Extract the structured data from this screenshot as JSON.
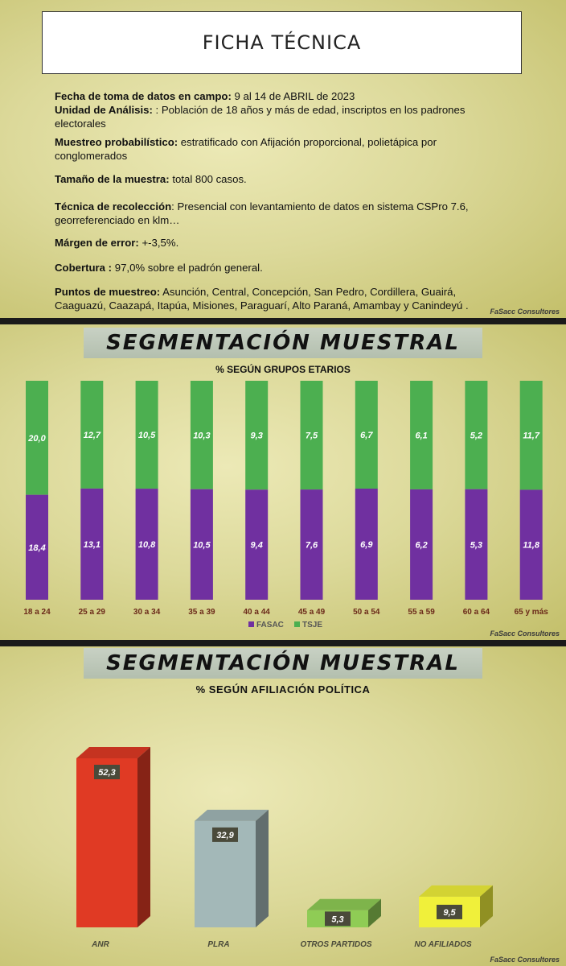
{
  "ficha": {
    "title": "FICHA TÉCNICA",
    "fields": [
      {
        "label": "Fecha de toma de datos en campo:",
        "value": " 9 al 14 de ABRIL de 2023"
      },
      {
        "label": "Unidad de Análisis: ",
        "value": ": Población de 18 años y más de edad, inscriptos en los padrones electorales"
      },
      {
        "label": " Muestreo probabilístico:",
        "value": " estratificado con Afijación proporcional, polietápica por conglomerados"
      },
      {
        "label": "Tamaño de la muestra:",
        "value": " total 800 casos."
      },
      {
        "label": "Técnica de recolección",
        "value": ": Presencial con levantamiento de datos en sistema CSPro 7.6, georreferenciado en klm…"
      },
      {
        "label": "Márgen de error:",
        "value": " +-3,5%."
      },
      {
        "label": "Cobertura : ",
        "value": "97,0% sobre el padrón general."
      },
      {
        "label": "Puntos de muestreo:",
        "value": " Asunción, Central, Concepción, San Pedro, Cordillera, Guairá, Caaguazú, Caazapá, Itapúa, Misiones, Paraguarí, Alto Paraná, Amambay y Canindeyú ."
      }
    ],
    "brand": "FaSacc Consultores"
  },
  "chart_data": [
    {
      "type": "bar",
      "stacked": true,
      "banner": "SEGMENTACIÓN MUESTRAL",
      "title": "% SEGÚN GRUPOS ETARIOS",
      "categories": [
        "18 a 24",
        "25 a 29",
        "30 a 34",
        "35 a 39",
        "40 a 44",
        "45 a 49",
        "50 a 54",
        "55 a 59",
        "60 a 64",
        "65 y más"
      ],
      "series": [
        {
          "name": "FASAC",
          "color": "#7030a0",
          "values": [
            18.4,
            13.1,
            10.8,
            10.5,
            9.4,
            7.6,
            6.9,
            6.2,
            5.3,
            11.8
          ],
          "labels": [
            "18,4",
            "13,1",
            "10,8",
            "10,5",
            "9,4",
            "7,6",
            "6,9",
            "6,2",
            "5,3",
            "11,8"
          ]
        },
        {
          "name": "TSJE",
          "color": "#4caf50",
          "values": [
            20.0,
            12.7,
            10.5,
            10.3,
            9.3,
            7.5,
            6.7,
            6.1,
            5.2,
            11.7
          ],
          "labels": [
            "20,0",
            "12,7",
            "10,5",
            "10,3",
            "9,3",
            "7,5",
            "6,7",
            "6,1",
            "5,2",
            "11,7"
          ]
        }
      ],
      "normalized": true,
      "legend_position": "bottom",
      "grid": false,
      "brand": "FaSacc Consultores"
    },
    {
      "type": "bar",
      "style": "3d",
      "banner": "SEGMENTACIÓN MUESTRAL",
      "title": "% SEGÚN AFILIACIÓN POLÍTICA",
      "categories": [
        "ANR",
        "PLRA",
        "OTROS PARTIDOS",
        "NO AFILIADOS"
      ],
      "values": [
        52.3,
        32.9,
        5.3,
        9.5
      ],
      "labels": [
        "52,3",
        "32,9",
        "5,3",
        "9,5"
      ],
      "colors": [
        "#e03a24",
        "#a3b8b8",
        "#8fcc55",
        "#f0f03a"
      ],
      "grid": false,
      "brand": "FaSacc Consultores"
    }
  ]
}
